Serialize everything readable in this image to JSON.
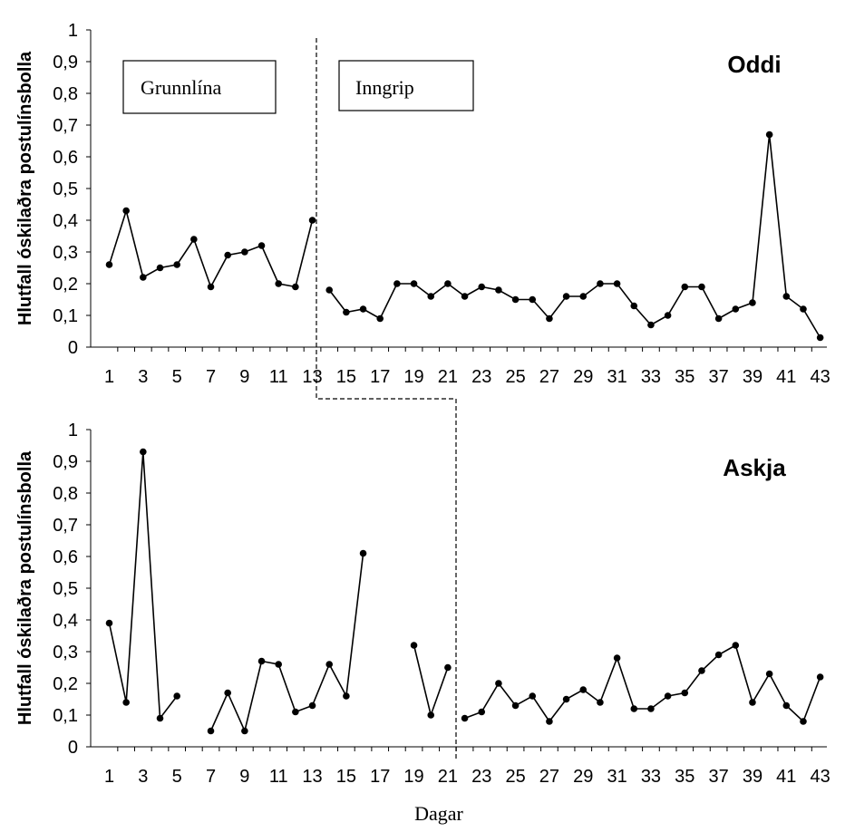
{
  "chart_data": [
    {
      "type": "line",
      "title": "Oddi",
      "ylabel": "Hlutfall óskilaðra postulínsbolla",
      "xlabel": "",
      "ylim": [
        0,
        1
      ],
      "yticks": [
        "0",
        "0,1",
        "0,2",
        "0,3",
        "0,4",
        "0,5",
        "0,6",
        "0,7",
        "0,8",
        "0,9",
        "1"
      ],
      "xticks": [
        1,
        3,
        5,
        7,
        9,
        11,
        13,
        15,
        17,
        19,
        21,
        23,
        25,
        27,
        29,
        31,
        33,
        35,
        37,
        39,
        41,
        43
      ],
      "phase_labels": [
        "Grunnlína",
        "Inngrip"
      ],
      "phase_change_after_day": 13,
      "x": [
        1,
        2,
        3,
        4,
        5,
        6,
        7,
        8,
        9,
        10,
        11,
        12,
        13,
        14,
        15,
        16,
        17,
        18,
        19,
        20,
        21,
        22,
        23,
        24,
        25,
        26,
        27,
        28,
        29,
        30,
        31,
        32,
        33,
        34,
        35,
        36,
        37,
        38,
        39,
        40,
        41,
        42,
        43
      ],
      "values": [
        0.26,
        0.43,
        0.22,
        0.25,
        0.26,
        0.34,
        0.19,
        0.29,
        0.3,
        0.32,
        0.2,
        0.19,
        0.4,
        0.18,
        0.11,
        0.12,
        0.09,
        0.2,
        0.2,
        0.16,
        0.2,
        0.16,
        0.19,
        0.18,
        0.15,
        0.15,
        0.09,
        0.16,
        0.16,
        0.2,
        0.2,
        0.13,
        0.07,
        0.1,
        0.19,
        0.19,
        0.09,
        0.12,
        0.14,
        0.67,
        0.16,
        0.12,
        0.03
      ],
      "segment_breaks": [
        13
      ]
    },
    {
      "type": "line",
      "title": "Askja",
      "ylabel": "Hlutfall óskilaðra postulínsbolla",
      "xlabel": "Dagar",
      "ylim": [
        0,
        1
      ],
      "yticks": [
        "0",
        "0,1",
        "0,2",
        "0,3",
        "0,4",
        "0,5",
        "0,6",
        "0,7",
        "0,8",
        "0,9",
        "1"
      ],
      "xticks": [
        1,
        3,
        5,
        7,
        9,
        11,
        13,
        15,
        17,
        19,
        21,
        23,
        25,
        27,
        29,
        31,
        33,
        35,
        37,
        39,
        41,
        43
      ],
      "phase_change_after_day": 21,
      "x": [
        1,
        2,
        3,
        4,
        5,
        6,
        7,
        8,
        9,
        10,
        11,
        12,
        13,
        14,
        15,
        16,
        17,
        18,
        19,
        20,
        21,
        22,
        23,
        24,
        25,
        26,
        27,
        28,
        29,
        30,
        31,
        32,
        33,
        34,
        35,
        36,
        37,
        38,
        39,
        40,
        41,
        42,
        43
      ],
      "values": [
        0.39,
        0.14,
        0.93,
        0.09,
        0.16,
        null,
        0.05,
        0.17,
        0.05,
        0.27,
        0.26,
        0.11,
        0.13,
        0.26,
        0.16,
        0.61,
        null,
        null,
        0.32,
        0.1,
        0.25,
        0.09,
        0.11,
        0.2,
        0.13,
        0.16,
        0.08,
        0.15,
        0.18,
        0.14,
        0.28,
        0.12,
        0.12,
        0.16,
        0.17,
        0.24,
        0.29,
        0.32,
        0.14,
        0.23,
        0.13,
        0.08,
        0.22
      ],
      "segment_breaks": [
        21
      ]
    }
  ]
}
